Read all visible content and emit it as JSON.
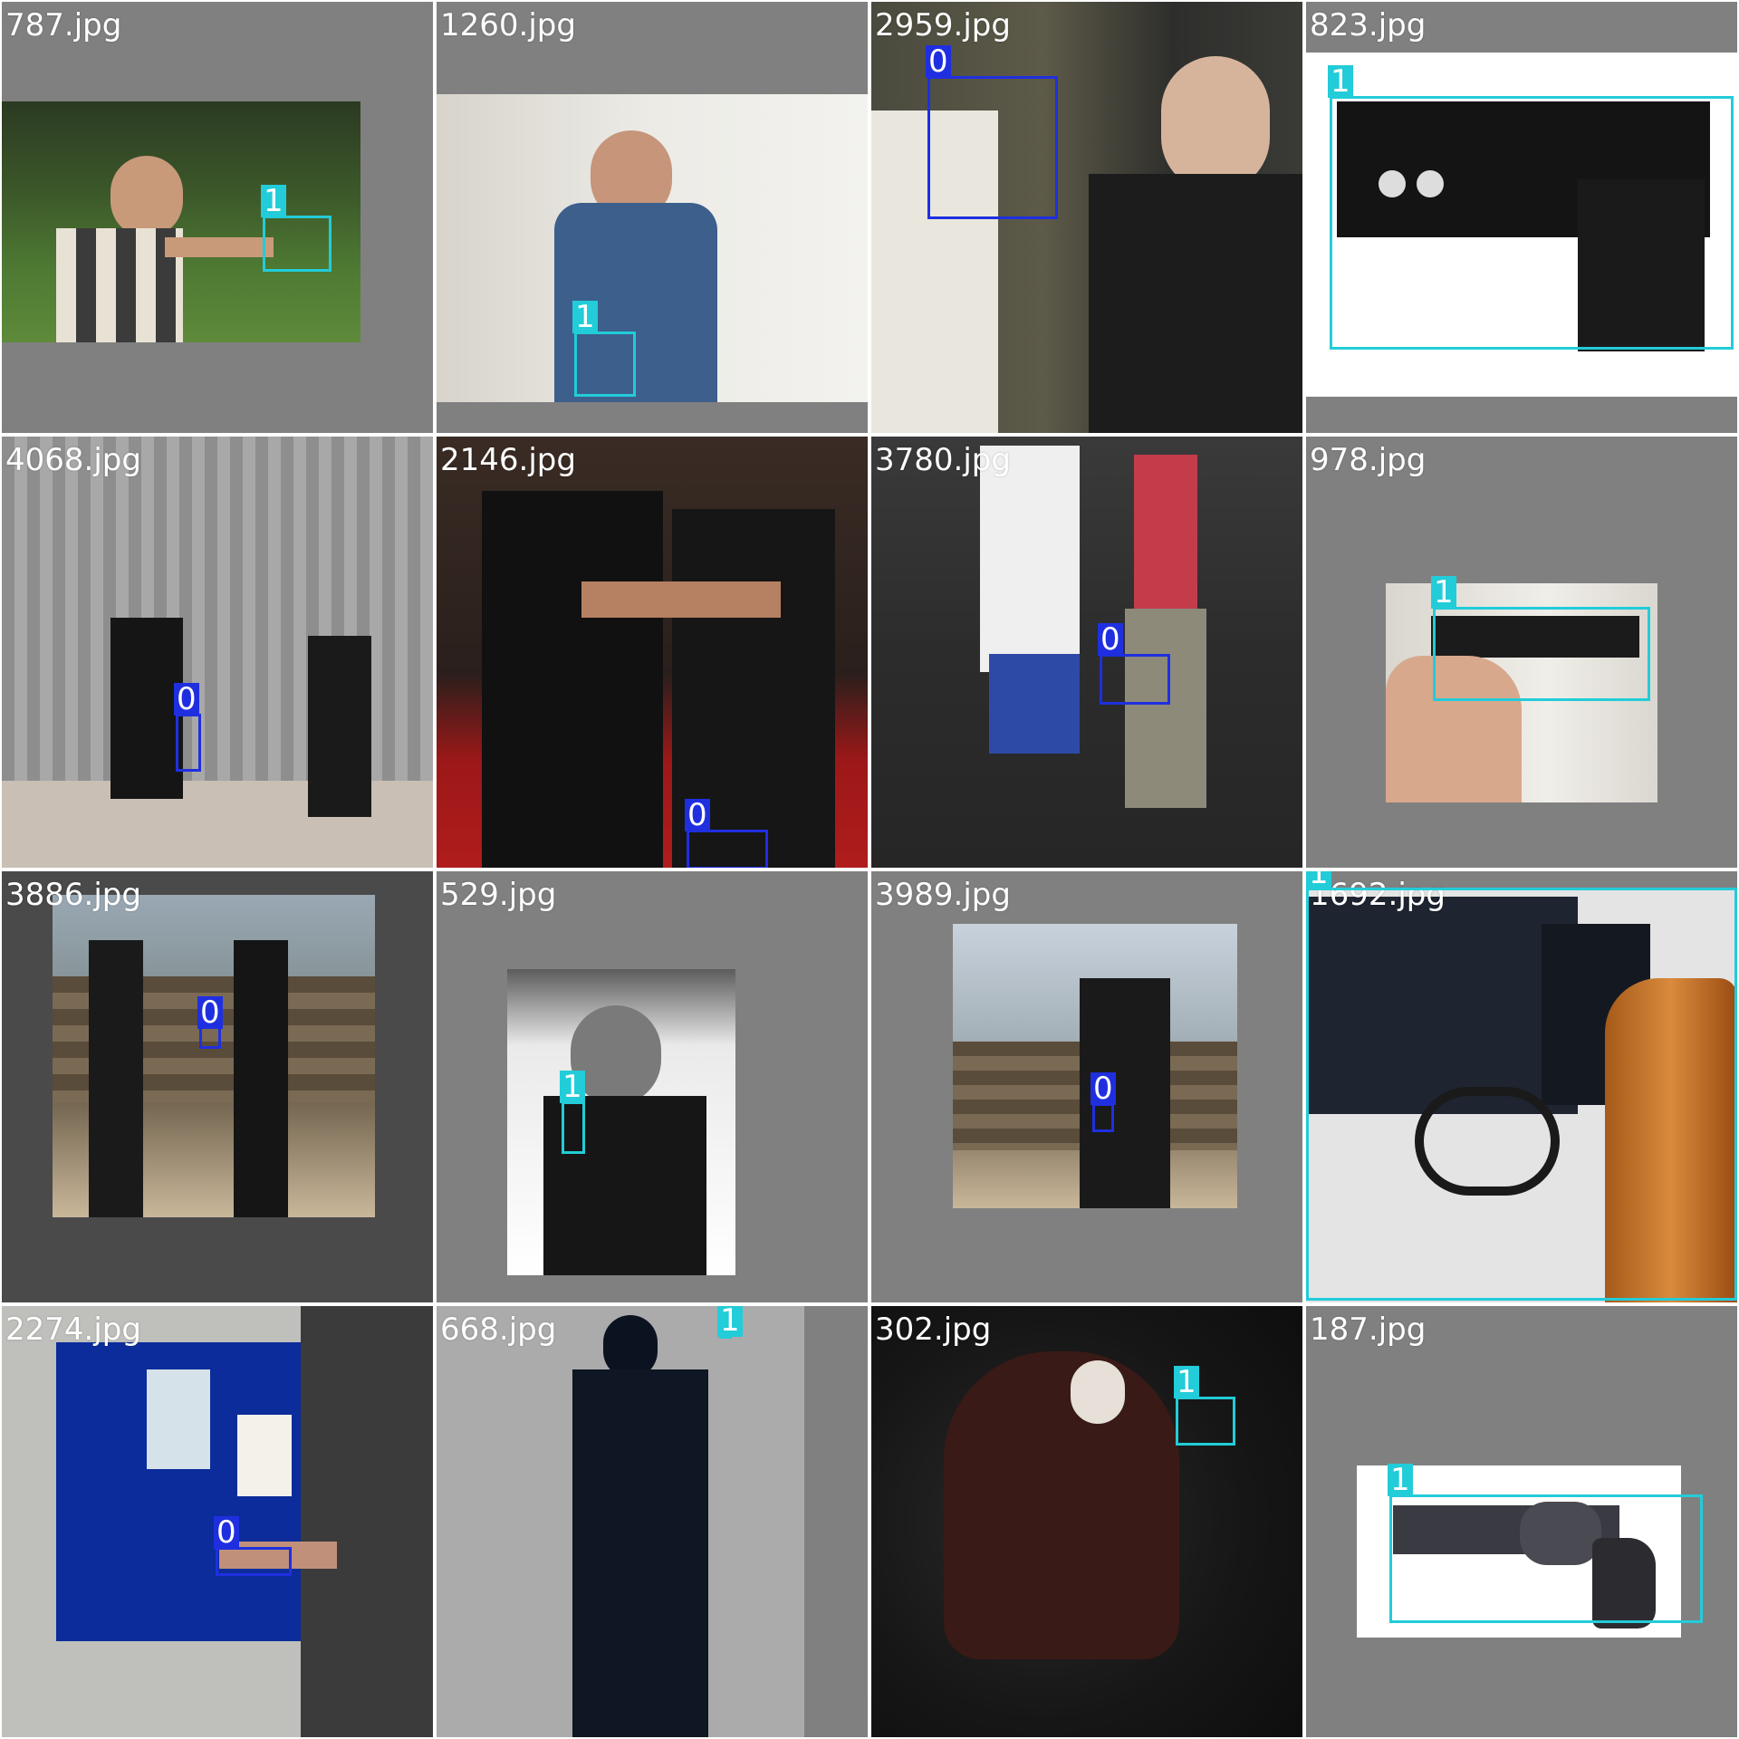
{
  "colors": {
    "class_0": "#1f2fe0",
    "class_1": "#22ccd8",
    "tile_bg": "#808080",
    "text": "#ffffff"
  },
  "tiles": [
    {
      "filename": "787.jpg",
      "labels": [
        "1"
      ]
    },
    {
      "filename": "1260.jpg",
      "labels": [
        "1"
      ]
    },
    {
      "filename": "2959.jpg",
      "labels": [
        "0"
      ]
    },
    {
      "filename": "823.jpg",
      "labels": [
        "1"
      ]
    },
    {
      "filename": "4068.jpg",
      "labels": [
        "0"
      ]
    },
    {
      "filename": "2146.jpg",
      "labels": [
        "0"
      ]
    },
    {
      "filename": "3780.jpg",
      "labels": [
        "0"
      ]
    },
    {
      "filename": "978.jpg",
      "labels": [
        "1"
      ]
    },
    {
      "filename": "3886.jpg",
      "labels": [
        "0"
      ]
    },
    {
      "filename": "529.jpg",
      "labels": [
        "1"
      ]
    },
    {
      "filename": "3989.jpg",
      "labels": [
        "0"
      ]
    },
    {
      "filename": "1692.jpg",
      "labels": [
        "1"
      ]
    },
    {
      "filename": "2274.jpg",
      "labels": [
        "0"
      ]
    },
    {
      "filename": "668.jpg",
      "labels": [
        "1"
      ]
    },
    {
      "filename": "302.jpg",
      "labels": [
        "1"
      ]
    },
    {
      "filename": "187.jpg",
      "labels": [
        "1"
      ]
    }
  ]
}
